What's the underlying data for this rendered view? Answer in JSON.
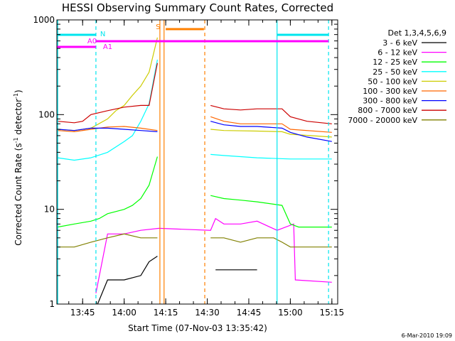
{
  "chart_data": {
    "type": "line",
    "title": "HESSI Observing Summary Count Rates, Corrected",
    "xlabel": "Start Time (07-Nov-03 13:35:42)",
    "ylabel_main": "Corrected Count Rate (s",
    "ylabel_sup1": "-1",
    "ylabel_mid": " detector",
    "ylabel_sup2": "-1",
    "ylabel_end": ")",
    "yscale": "log",
    "xlim": [
      13.595,
      15.285
    ],
    "ylim": [
      1,
      1000
    ],
    "x_ticks": [
      {
        "v": 13.75,
        "label": "13:45"
      },
      {
        "v": 14.0,
        "label": "14:00"
      },
      {
        "v": 14.25,
        "label": "14:15"
      },
      {
        "v": 14.5,
        "label": "14:30"
      },
      {
        "v": 14.75,
        "label": "14:45"
      },
      {
        "v": 15.0,
        "label": "15:00"
      },
      {
        "v": 15.25,
        "label": "15:15"
      }
    ],
    "y_ticks": [
      {
        "v": 1,
        "label": "1"
      },
      {
        "v": 10,
        "label": "10"
      },
      {
        "v": 100,
        "label": "100"
      },
      {
        "v": 1000,
        "label": "1000"
      }
    ],
    "legend_title": "Det 1,3,4,5,6,9",
    "legend_placement": "right",
    "series": [
      {
        "name": "3 - 6 keV",
        "color": "#000000",
        "x": [
          13.6,
          13.83,
          13.84,
          13.9,
          14.0,
          14.1,
          14.15,
          14.2,
          14.21,
          14.52,
          14.55,
          14.6,
          14.7,
          14.8,
          14.84
        ],
        "y": [
          0,
          0,
          1,
          1.8,
          1.8,
          2.0,
          2.8,
          3.2,
          0,
          0,
          2.3,
          2.3,
          2.3,
          2.3,
          0
        ]
      },
      {
        "name": "6 - 12 keV",
        "color": "#ff00ff",
        "x": [
          13.6,
          13.82,
          13.83,
          13.9,
          14.0,
          14.1,
          14.21,
          14.52,
          14.55,
          14.6,
          14.7,
          14.8,
          14.92,
          15.02,
          15.03,
          15.25
        ],
        "y": [
          0,
          0,
          1.3,
          5.5,
          5.5,
          6.0,
          6.3,
          6.0,
          8.0,
          7.0,
          7.0,
          7.5,
          6.0,
          7.0,
          1.8,
          1.7
        ]
      },
      {
        "name": "12 - 25 keV",
        "color": "#00ff00",
        "x": [
          13.6,
          13.7,
          13.8,
          13.85,
          13.9,
          14.0,
          14.05,
          14.1,
          14.15,
          14.2,
          14.21,
          14.52,
          14.6,
          14.7,
          14.8,
          14.95,
          15.0,
          15.05,
          15.25
        ],
        "y": [
          6.5,
          7.0,
          7.5,
          8.0,
          9.0,
          10.0,
          11.0,
          13.0,
          18.0,
          36.0,
          0,
          14.0,
          13.0,
          12.5,
          12.0,
          11.0,
          7.0,
          6.5,
          6.5
        ]
      },
      {
        "name": "25 - 50 keV",
        "color": "#00ffff",
        "x": [
          13.6,
          13.7,
          13.8,
          13.9,
          14.0,
          14.05,
          14.1,
          14.15,
          14.2,
          14.21,
          14.52,
          14.6,
          14.8,
          15.0,
          15.25
        ],
        "y": [
          35,
          33,
          35,
          40,
          52,
          60,
          85,
          130,
          380,
          0,
          38,
          37,
          35,
          34,
          34
        ]
      },
      {
        "name": "50 - 100 keV",
        "color": "#cccc00",
        "x": [
          13.6,
          13.7,
          13.8,
          13.9,
          13.95,
          14.0,
          14.05,
          14.1,
          14.15,
          14.2,
          14.21,
          14.52,
          14.6,
          14.8,
          14.95,
          15.0,
          15.25
        ],
        "y": [
          70,
          68,
          72,
          90,
          110,
          125,
          160,
          200,
          280,
          650,
          0,
          70,
          68,
          67,
          66,
          62,
          58
        ]
      },
      {
        "name": "100 - 300 keV",
        "color": "#ff6600",
        "x": [
          13.6,
          13.7,
          13.8,
          13.9,
          14.0,
          14.1,
          14.2,
          14.21,
          14.52,
          14.6,
          14.7,
          14.8,
          14.95,
          15.0,
          15.25
        ],
        "y": [
          68,
          66,
          70,
          74,
          75,
          72,
          68,
          0,
          95,
          85,
          80,
          80,
          80,
          70,
          65
        ]
      },
      {
        "name": "300 - 800 keV",
        "color": "#0000ff",
        "x": [
          13.6,
          13.7,
          13.8,
          13.9,
          14.0,
          14.1,
          14.2,
          14.21,
          14.52,
          14.6,
          14.7,
          14.8,
          14.95,
          15.0,
          15.1,
          15.25
        ],
        "y": [
          70,
          68,
          72,
          72,
          70,
          68,
          66,
          0,
          85,
          78,
          75,
          75,
          72,
          65,
          58,
          52
        ]
      },
      {
        "name": "800 - 7000 keV",
        "color": "#cc0000",
        "x": [
          13.6,
          13.7,
          13.75,
          13.8,
          13.9,
          14.0,
          14.1,
          14.15,
          14.2,
          14.21,
          14.52,
          14.6,
          14.7,
          14.8,
          14.95,
          15.0,
          15.1,
          15.25
        ],
        "y": [
          85,
          82,
          85,
          100,
          110,
          120,
          125,
          125,
          350,
          0,
          125,
          115,
          112,
          115,
          115,
          95,
          85,
          80
        ]
      },
      {
        "name": "7000 - 20000 keV",
        "color": "#808000",
        "x": [
          13.6,
          13.7,
          13.8,
          13.9,
          14.0,
          14.1,
          14.2,
          14.21,
          14.52,
          14.6,
          14.7,
          14.8,
          14.9,
          14.95,
          15.0,
          15.1,
          15.25
        ],
        "y": [
          4.0,
          4.0,
          4.5,
          5.0,
          5.5,
          5.0,
          5.0,
          0,
          5.0,
          5.0,
          4.5,
          5.0,
          5.0,
          4.5,
          4.0,
          4.0,
          4.0
        ]
      }
    ],
    "flags": [
      {
        "label": "N",
        "color": "#00e5ee",
        "x1": 13.595,
        "x2": 13.83,
        "level": 0
      },
      {
        "label": "N",
        "color": "#00e5ee",
        "x1": 14.92,
        "x2": 15.23,
        "level": 0
      },
      {
        "label": "A0",
        "color": "#ff00ff",
        "x1": 13.595,
        "x2": 13.83,
        "level": 1
      },
      {
        "label": "A1",
        "color": "#ff00ff",
        "x1": 13.83,
        "x2": 15.23,
        "level": 2
      },
      {
        "label": "S",
        "color": "#ff8000",
        "x1": 14.25,
        "x2": 14.48,
        "level": -1
      }
    ],
    "vlines": [
      {
        "x": 13.83,
        "color": "#00e5ee",
        "style": "dashed"
      },
      {
        "x": 14.92,
        "color": "#00e5ee",
        "style": "solid"
      },
      {
        "x": 15.23,
        "color": "#00e5ee",
        "style": "dashed"
      },
      {
        "x": 14.215,
        "color": "#ff8000",
        "style": "solid"
      },
      {
        "x": 14.24,
        "color": "#ff8000",
        "style": "solid"
      },
      {
        "x": 14.485,
        "color": "#ff8000",
        "style": "dashed"
      },
      {
        "x": 13.6,
        "color": "#00e5ee",
        "style": "solid"
      }
    ],
    "footer_date": "6-Mar-2010 19:09"
  }
}
